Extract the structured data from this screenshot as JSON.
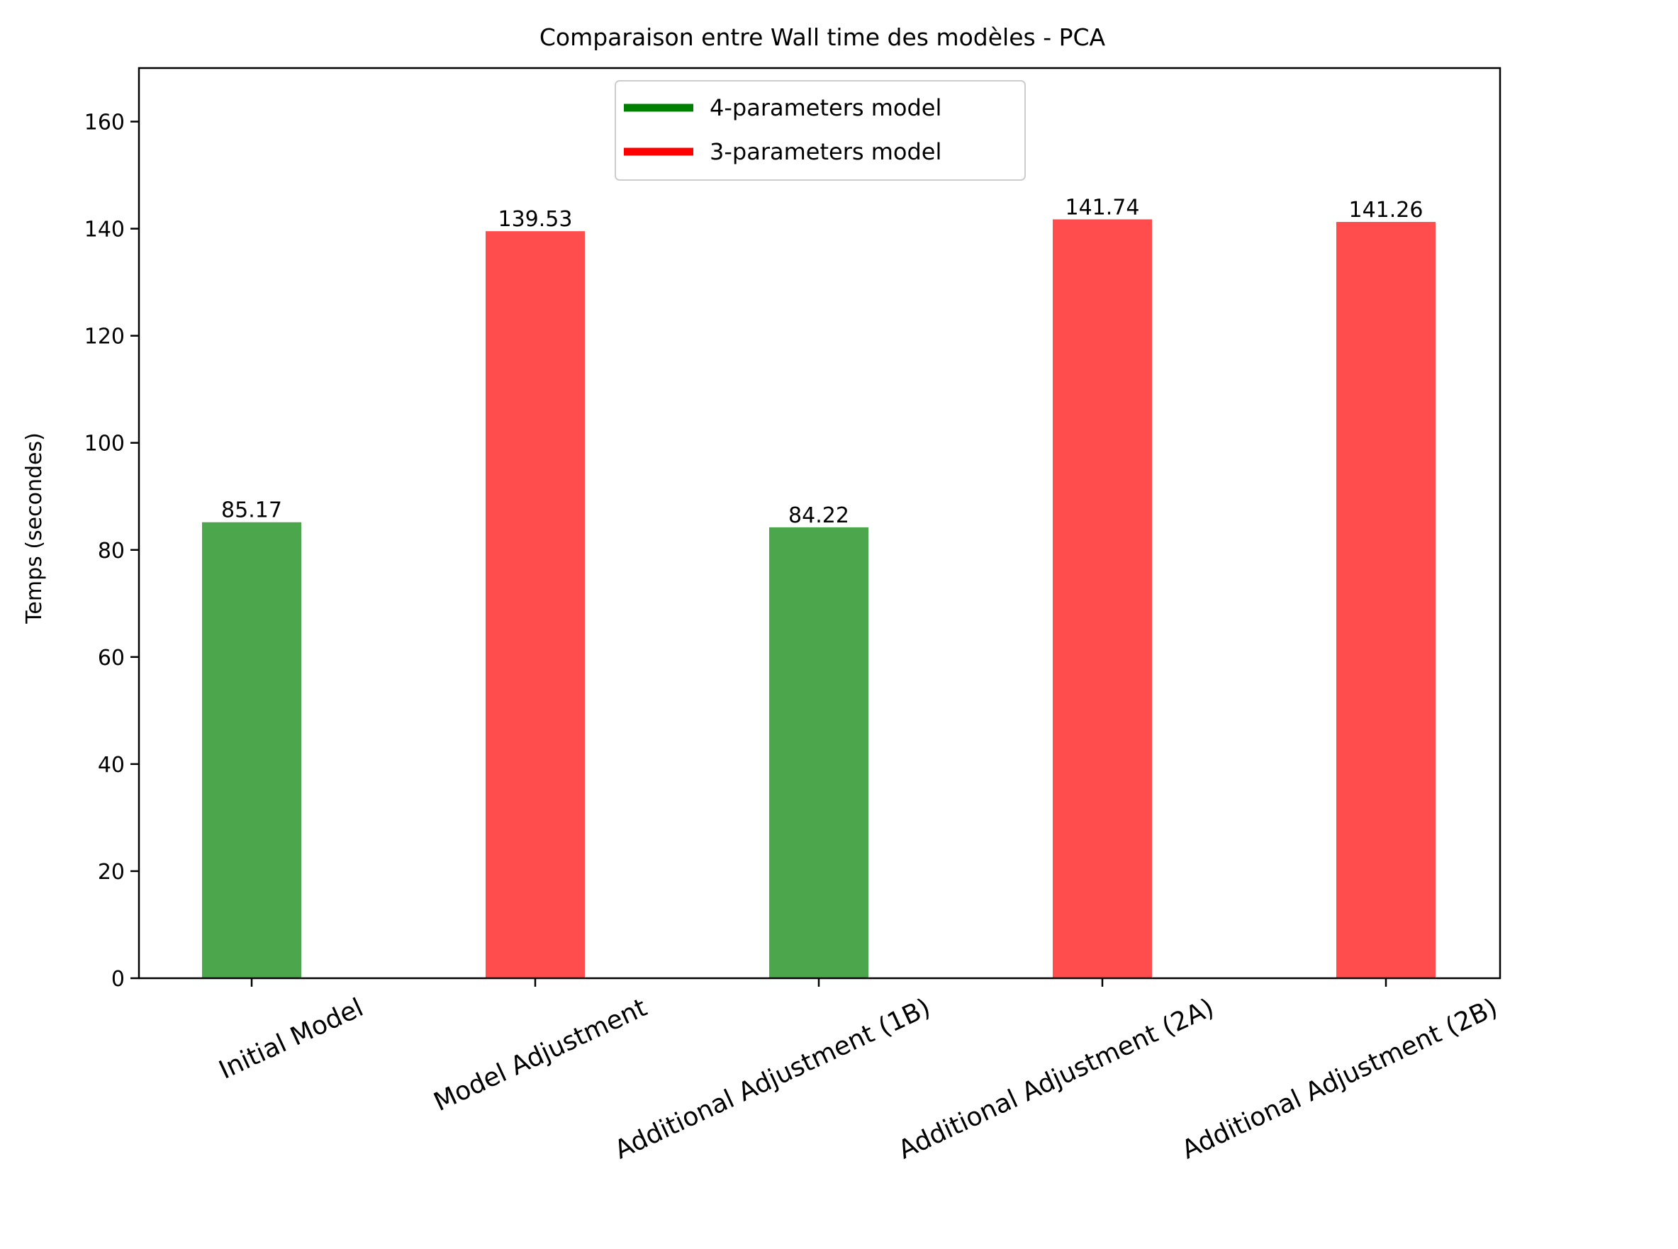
{
  "chart_data": {
    "type": "bar",
    "title": "Comparaison entre Wall time des modèles - PCA",
    "xlabel": "",
    "ylabel": "Temps (secondes)",
    "ylim": [
      0,
      170
    ],
    "yticks": [
      0,
      20,
      40,
      60,
      80,
      100,
      120,
      140,
      160
    ],
    "categories": [
      "Initial Model",
      "Model Adjustment",
      "Additional Adjustment (1B)",
      "Additional Adjustment (2A)",
      "Additional Adjustment (2B)"
    ],
    "values": [
      85.17,
      139.53,
      84.22,
      141.74,
      141.26
    ],
    "value_labels": [
      "85.17",
      "139.53",
      "84.22",
      "141.74",
      "141.26"
    ],
    "bar_series": [
      "4-parameters model",
      "3-parameters model",
      "4-parameters model",
      "3-parameters model",
      "3-parameters model"
    ],
    "series": [
      {
        "name": "4-parameters model",
        "color": "#4ca64c",
        "legend_color": "#008000"
      },
      {
        "name": "3-parameters model",
        "color": "#ff4d4d",
        "legend_color": "#ff0000"
      }
    ],
    "legend_position": "upper-center",
    "grid": false
  }
}
